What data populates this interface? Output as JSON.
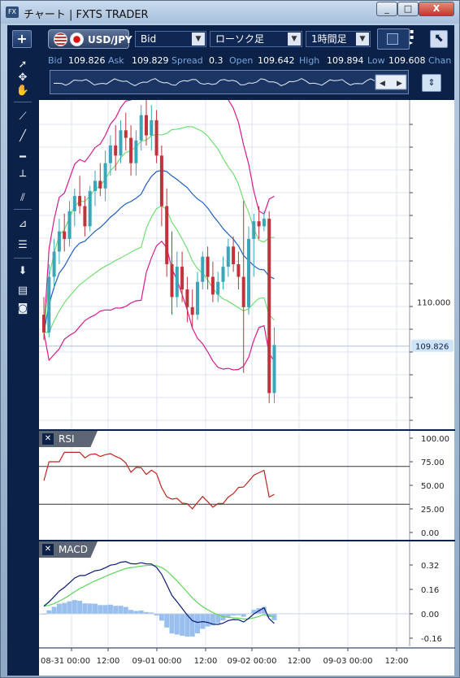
{
  "window": {
    "icon": "FX",
    "title": "チャート | FXTS TRADER",
    "controls": {
      "minimize": "_",
      "maximize": "□",
      "close": "X"
    }
  },
  "toolbar": {
    "add_label": "+",
    "pair": "USD/JPY",
    "price_type": "Bid",
    "chart_type": "ローソク足",
    "timeframe": "1時間足",
    "expand_icon": "⬉"
  },
  "quotes": {
    "bid_label": "Bid",
    "bid": "109.826",
    "ask_label": "Ask",
    "ask": "109.829",
    "spread_label": "Spread",
    "spread": "0.3",
    "open_label": "Open",
    "open": "109.642",
    "high_label": "High",
    "high": "109.894",
    "low_label": "Low",
    "low": "109.608",
    "change_label": "Chan"
  },
  "tools": [
    "cursor-icon",
    "crosshair-move-icon",
    "hand-icon",
    "trendline-icon",
    "line-icon",
    "horizontal-line-icon",
    "vertical-line-icon",
    "channel-icon",
    "fibonacci-fan-icon",
    "fibonacci-retracement-icon",
    "download-icon",
    "list-icon",
    "camera-icon"
  ],
  "price_axis": {
    "tick": "110.000",
    "current": "109.826",
    "current_color": "#cfe4f7"
  },
  "rsi": {
    "label": "RSI",
    "ticks": [
      "100.00",
      "75.00",
      "50.00",
      "25.00",
      "0.00"
    ],
    "levels": [
      70,
      30
    ]
  },
  "macd": {
    "label": "MACD",
    "ticks": [
      "0.32",
      "0.16",
      "0.00",
      "-0.16"
    ]
  },
  "time_axis": [
    "08-31 00:00",
    "12:00",
    "09-01 00:00",
    "12:00",
    "09-02 00:00",
    "12:00",
    "09-03 00:00",
    "12:00"
  ],
  "colors": {
    "up": "#3aa6b8",
    "down": "#c0333a",
    "bb_outer": "#d81b8c",
    "bb_mid": "#66dd66",
    "ma": "#1f5fbf",
    "rsi": "#c0241e",
    "macd": "#0b1a7a",
    "signal": "#5bd65b",
    "hist": "#99bfee"
  },
  "chart_data": {
    "type": "candlestick",
    "series": [
      {
        "name": "USD/JPY",
        "ohlc": [
          [
            109.95,
            110.02,
            109.85,
            109.88
          ],
          [
            109.88,
            110.15,
            109.86,
            110.1
          ],
          [
            110.1,
            110.25,
            110.05,
            110.2
          ],
          [
            110.2,
            110.33,
            110.15,
            110.28
          ],
          [
            110.28,
            110.35,
            110.2,
            110.25
          ],
          [
            110.25,
            110.4,
            110.22,
            110.36
          ],
          [
            110.36,
            110.45,
            110.3,
            110.42
          ],
          [
            110.42,
            110.5,
            110.35,
            110.38
          ],
          [
            110.38,
            110.42,
            110.26,
            110.3
          ],
          [
            110.3,
            110.46,
            110.28,
            110.44
          ],
          [
            110.44,
            110.52,
            110.38,
            110.48
          ],
          [
            110.48,
            110.55,
            110.42,
            110.45
          ],
          [
            110.45,
            110.6,
            110.4,
            110.55
          ],
          [
            110.55,
            110.66,
            110.5,
            110.62
          ],
          [
            110.62,
            110.7,
            110.52,
            110.58
          ],
          [
            110.58,
            110.72,
            110.55,
            110.68
          ],
          [
            110.68,
            110.75,
            110.6,
            110.65
          ],
          [
            110.65,
            110.7,
            110.5,
            110.55
          ],
          [
            110.55,
            110.68,
            110.5,
            110.64
          ],
          [
            110.64,
            110.78,
            110.6,
            110.74
          ],
          [
            110.74,
            110.8,
            110.62,
            110.66
          ],
          [
            110.66,
            110.78,
            110.6,
            110.72
          ],
          [
            110.72,
            110.76,
            110.55,
            110.58
          ],
          [
            110.58,
            110.62,
            110.3,
            110.38
          ],
          [
            110.38,
            110.45,
            110.1,
            110.15
          ],
          [
            110.15,
            110.28,
            109.95,
            110.02
          ],
          [
            110.02,
            110.2,
            109.98,
            110.14
          ],
          [
            110.14,
            110.2,
            110.0,
            110.05
          ],
          [
            110.05,
            110.1,
            109.92,
            109.98
          ],
          [
            109.98,
            110.05,
            109.9,
            109.95
          ],
          [
            109.95,
            110.12,
            109.93,
            110.08
          ],
          [
            110.08,
            110.2,
            110.05,
            110.18
          ],
          [
            110.18,
            110.22,
            110.05,
            110.1
          ],
          [
            110.1,
            110.16,
            110.0,
            110.03
          ],
          [
            110.03,
            110.12,
            110.0,
            110.08
          ],
          [
            110.08,
            110.18,
            110.05,
            110.14
          ],
          [
            110.14,
            110.25,
            110.1,
            110.22
          ],
          [
            110.22,
            110.26,
            110.12,
            110.15
          ],
          [
            110.15,
            110.2,
            110.05,
            110.1
          ],
          [
            110.1,
            110.4,
            109.72,
            109.98
          ],
          [
            109.98,
            110.3,
            109.95,
            110.25
          ],
          [
            110.25,
            110.35,
            110.1,
            110.32
          ],
          [
            110.32,
            110.38,
            110.25,
            110.3
          ],
          [
            110.3,
            110.36,
            110.28,
            110.33
          ],
          [
            110.33,
            110.36,
            109.6,
            109.64
          ],
          [
            109.64,
            109.9,
            109.6,
            109.83
          ]
        ]
      }
    ],
    "y_range": [
      109.5,
      110.8
    ]
  }
}
